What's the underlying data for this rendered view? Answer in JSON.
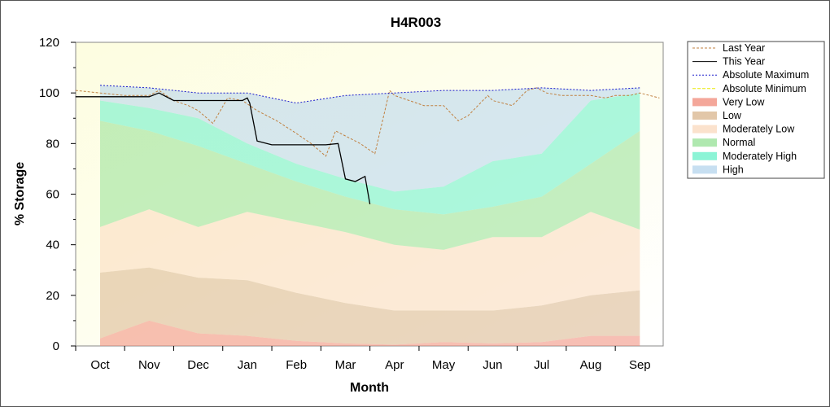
{
  "chart_data": {
    "type": "area",
    "title": "H4R003",
    "xlabel": "Month",
    "ylabel": "% Storage",
    "ylim": [
      0,
      120
    ],
    "yticks": [
      0,
      20,
      40,
      60,
      80,
      100,
      120
    ],
    "months": [
      "Oct",
      "Nov",
      "Dec",
      "Jan",
      "Feb",
      "Mar",
      "Apr",
      "May",
      "Jun",
      "Jul",
      "Aug",
      "Sep"
    ],
    "band_x": [
      0,
      1,
      2,
      3,
      4,
      5,
      6,
      7,
      8,
      9,
      10,
      11
    ],
    "bands": [
      {
        "name": "Very Low",
        "color": "#f08a78",
        "lower": [
          0,
          0,
          0,
          0,
          0,
          0,
          0,
          0,
          0,
          0,
          0,
          0
        ],
        "upper": [
          3,
          10,
          5,
          4,
          2,
          1,
          0.5,
          1.5,
          1,
          1.5,
          4,
          4
        ]
      },
      {
        "name": "Low",
        "color": "#d8b48c",
        "lower": [
          3,
          10,
          5,
          4,
          2,
          1,
          0.5,
          1.5,
          1,
          1.5,
          4,
          4
        ],
        "upper": [
          29,
          31,
          27,
          26,
          21,
          17,
          14,
          14,
          14,
          16,
          20,
          22
        ]
      },
      {
        "name": "Moderately Low",
        "color": "#fad8bc",
        "lower": [
          29,
          31,
          27,
          26,
          21,
          17,
          14,
          14,
          14,
          16,
          20,
          22
        ],
        "upper": [
          47,
          54,
          47,
          53,
          49,
          45,
          40,
          38,
          43,
          43,
          53,
          46
        ]
      },
      {
        "name": "Normal",
        "color": "#94e094",
        "lower": [
          47,
          54,
          47,
          53,
          49,
          45,
          40,
          38,
          43,
          43,
          53,
          46
        ],
        "upper": [
          89,
          85,
          79,
          72,
          65,
          59,
          54,
          52,
          55,
          59,
          72,
          85
        ]
      },
      {
        "name": "Moderately High",
        "color": "#66f0c8",
        "lower": [
          89,
          85,
          79,
          72,
          65,
          59,
          54,
          52,
          55,
          59,
          72,
          85
        ],
        "upper": [
          97,
          94,
          90,
          80,
          72,
          66,
          61,
          63,
          73,
          76,
          97,
          100
        ]
      },
      {
        "name": "High",
        "color": "#b4d4ec",
        "lower": [
          97,
          94,
          90,
          80,
          72,
          66,
          61,
          63,
          73,
          76,
          97,
          100
        ],
        "upper": [
          103,
          102,
          100,
          100,
          96,
          99,
          100,
          101,
          101,
          102,
          101,
          102
        ]
      }
    ],
    "series": [
      {
        "name": "Last Year",
        "color": "#c08040",
        "dash": "3,2",
        "x": [
          -0.5,
          0,
          0.5,
          1,
          1.2,
          1.5,
          1.8,
          2,
          2.3,
          2.6,
          2.9,
          3.2,
          3.6,
          4,
          4.3,
          4.6,
          4.8,
          5,
          5.3,
          5.6,
          5.9,
          6,
          6.3,
          6.6,
          7,
          7.3,
          7.5,
          7.9,
          8,
          8.2,
          8.4,
          8.7,
          8.9,
          9.1,
          9.4,
          9.7,
          10,
          10.3,
          10.5,
          10.8,
          11,
          11.4
        ],
        "y": [
          101,
          100,
          99,
          99,
          101,
          97,
          95,
          93,
          88,
          98,
          97,
          93,
          89,
          84,
          80,
          75,
          85,
          83,
          80,
          76,
          101,
          99,
          97,
          95,
          95,
          89,
          91,
          99,
          97,
          96,
          95,
          101,
          102,
          100,
          99,
          99,
          99,
          98,
          99,
          99,
          100,
          98
        ]
      },
      {
        "name": "This Year",
        "color": "#000000",
        "dash": "",
        "x": [
          -0.5,
          0,
          0.5,
          1,
          1.2,
          1.5,
          1.8,
          2.1,
          2.5,
          2.9,
          3,
          3.05,
          3.2,
          3.5,
          3.8,
          4.3,
          4.6,
          4.85,
          5,
          5.2,
          5.4,
          5.5
        ],
        "y": [
          98.5,
          98.5,
          98.5,
          98.5,
          100,
          97,
          97,
          97,
          97,
          97,
          98,
          96,
          81,
          79.5,
          79.5,
          79.5,
          79.5,
          80,
          66,
          65,
          67,
          56
        ]
      },
      {
        "name": "Absolute Maximum",
        "color": "#1a1acc",
        "dash": "2,2",
        "x": [
          0,
          1,
          2,
          3,
          4,
          5,
          6,
          7,
          8,
          9,
          10,
          11
        ],
        "y": [
          103,
          102,
          100,
          100,
          96,
          99,
          100,
          101,
          101,
          102,
          101,
          102
        ]
      },
      {
        "name": "Absolute Minimum",
        "color": "#e8e800",
        "dash": "4,2",
        "x": [],
        "y": []
      }
    ],
    "legend": [
      {
        "label": "Last Year",
        "kind": "line",
        "color": "#c08040",
        "dash": "3,2"
      },
      {
        "label": "This Year",
        "kind": "line",
        "color": "#000000",
        "dash": ""
      },
      {
        "label": "Absolute Maximum",
        "kind": "line",
        "color": "#1a1acc",
        "dash": "2,2"
      },
      {
        "label": "Absolute Minimum",
        "kind": "line",
        "color": "#e8e800",
        "dash": "4,2"
      },
      {
        "label": "Very Low",
        "kind": "swatch",
        "color": "#f08a78"
      },
      {
        "label": "Low",
        "kind": "swatch",
        "color": "#d8b48c"
      },
      {
        "label": "Moderately Low",
        "kind": "swatch",
        "color": "#fad8bc"
      },
      {
        "label": "Normal",
        "kind": "swatch",
        "color": "#94e094"
      },
      {
        "label": "Moderately High",
        "kind": "swatch",
        "color": "#66f0c8"
      },
      {
        "label": "High",
        "kind": "swatch",
        "color": "#b4d4ec"
      }
    ],
    "legend_position": "top-right",
    "plot_background": "#fdfde6"
  }
}
